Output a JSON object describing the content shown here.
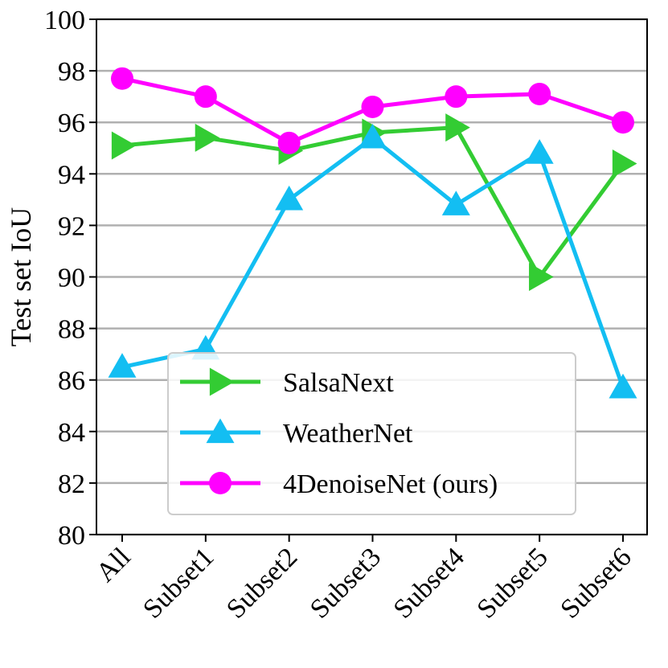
{
  "chart_data": {
    "type": "line",
    "title": "",
    "xlabel": "",
    "ylabel": "Test set IoU",
    "categories": [
      "All",
      "Subset1",
      "Subset2",
      "Subset3",
      "Subset4",
      "Subset5",
      "Subset6"
    ],
    "ylim": [
      80,
      100
    ],
    "yticks": [
      80,
      82,
      84,
      86,
      88,
      90,
      92,
      94,
      96,
      98,
      100
    ],
    "grid": "horizontal",
    "legend_position": "bottom-right",
    "series": [
      {
        "name": "SalsaNext",
        "color": "#33cc33",
        "marker": "triangle-right",
        "values": [
          95.1,
          95.4,
          94.9,
          95.6,
          95.8,
          90.0,
          94.4
        ]
      },
      {
        "name": "WeatherNet",
        "color": "#13bef2",
        "marker": "triangle-up",
        "values": [
          86.5,
          87.2,
          93.0,
          95.4,
          92.8,
          94.8,
          85.7
        ]
      },
      {
        "name": "4DenoiseNet (ours)",
        "color": "#ff00ff",
        "marker": "circle",
        "values": [
          97.7,
          97.0,
          95.2,
          96.6,
          97.0,
          97.1,
          96.0
        ]
      }
    ]
  }
}
